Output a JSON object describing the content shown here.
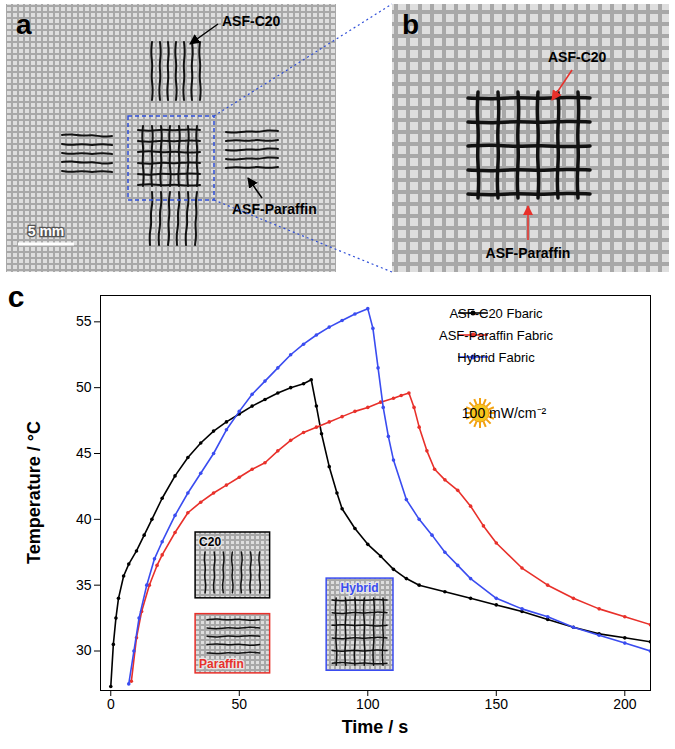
{
  "panels": [
    {
      "letter": "a",
      "labels": [
        "ASF-C20",
        "ASF-Paraffin"
      ],
      "scale_bar": "5 mm"
    },
    {
      "letter": "b",
      "labels": [
        "ASF-C20",
        "ASF-Paraffin"
      ]
    }
  ],
  "chart_data": {
    "type": "line",
    "panel_letter": "c",
    "x_label": "Time / s",
    "y_label": "Temperature / °C",
    "xlim": [
      -4,
      210
    ],
    "xticks": [
      0,
      50,
      100,
      150,
      200
    ],
    "ylim": [
      27,
      57
    ],
    "yticks": [
      30,
      35,
      40,
      45,
      50,
      55
    ],
    "grid": false,
    "legend": "top-right",
    "marker": "circle",
    "series": [
      {
        "name": "ASF-C20 Fbaric",
        "color": "#000000",
        "x": [
          0,
          1,
          2,
          3,
          5,
          7,
          10,
          13,
          16,
          20,
          25,
          30,
          35,
          40,
          45,
          50,
          55,
          60,
          65,
          70,
          75,
          78,
          80,
          82,
          85,
          88,
          90,
          95,
          100,
          105,
          110,
          115,
          120,
          130,
          140,
          150,
          160,
          170,
          180,
          190,
          200,
          210
        ],
        "values": [
          27.3,
          30.5,
          32.5,
          34,
          35.7,
          36.6,
          37.6,
          38.8,
          40,
          41.6,
          43.3,
          44.7,
          45.8,
          46.7,
          47.4,
          48,
          48.6,
          49.1,
          49.6,
          50,
          50.3,
          50.6,
          48.6,
          46.5,
          44,
          42,
          40.8,
          39.3,
          38.1,
          37.2,
          36.2,
          35.5,
          35,
          34.5,
          34,
          33.5,
          33,
          32.4,
          31.8,
          31.3,
          31,
          30.7
        ]
      },
      {
        "name": "ASF-Paraffin Fabric",
        "color": "#e8302a",
        "x": [
          8,
          10,
          12,
          15,
          18,
          20,
          25,
          30,
          35,
          40,
          45,
          50,
          55,
          60,
          65,
          70,
          75,
          80,
          85,
          90,
          95,
          100,
          105,
          110,
          113,
          116,
          118,
          120,
          123,
          126,
          130,
          135,
          140,
          145,
          150,
          160,
          170,
          180,
          190,
          200,
          210
        ],
        "values": [
          27.7,
          31,
          33,
          35,
          36.5,
          37.3,
          39,
          40.5,
          41.3,
          42,
          42.6,
          43.2,
          43.8,
          44.3,
          45.2,
          46,
          46.6,
          47,
          47.4,
          47.8,
          48.2,
          48.5,
          48.9,
          49.2,
          49.4,
          49.6,
          48.5,
          47,
          45.2,
          43.8,
          43,
          42.2,
          41,
          39.5,
          38.2,
          36.3,
          35,
          34,
          33.2,
          32.6,
          32
        ]
      },
      {
        "name": "Hybrid Fabric",
        "color": "#3a4cf0",
        "x": [
          7,
          9,
          11,
          14,
          17,
          20,
          25,
          30,
          35,
          40,
          45,
          50,
          55,
          60,
          65,
          70,
          75,
          80,
          85,
          90,
          95,
          100,
          102,
          104,
          106,
          108,
          110,
          115,
          120,
          125,
          130,
          135,
          140,
          150,
          160,
          170,
          180,
          190,
          200,
          210
        ],
        "values": [
          27.5,
          30,
          32.5,
          35,
          37,
          38.3,
          40.3,
          42,
          43.5,
          45,
          46.8,
          48.2,
          49.5,
          50.5,
          51.5,
          52.5,
          53.3,
          54,
          54.6,
          55.1,
          55.6,
          56,
          54.5,
          51.5,
          48.5,
          46.3,
          44.5,
          41.5,
          40,
          38.8,
          37.5,
          36.5,
          35.5,
          34,
          33.2,
          32.6,
          31.8,
          31.2,
          30.6,
          30
        ]
      }
    ],
    "annotations": [
      "100 mW/cm⁻²"
    ],
    "insets": [
      "C20",
      "Paraffin",
      "Hybrid"
    ]
  }
}
